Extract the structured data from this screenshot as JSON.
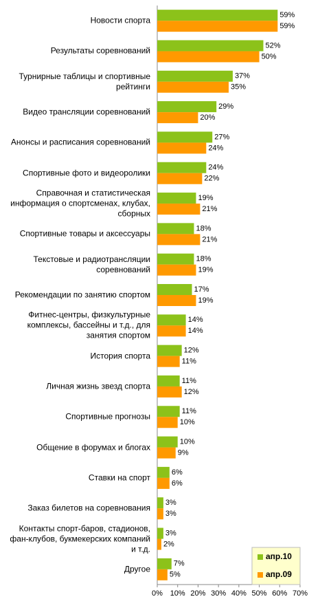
{
  "chart_data": {
    "type": "hbar",
    "categories": [
      "Новости спорта",
      "Результаты соревнований",
      "Турнирные таблицы и спортивные рейтинги",
      "Видео трансляции соревнований",
      "Анонсы и расписания соревнований",
      "Спортивные фото и видеоролики",
      "Справочная и статистическая информация о спортсменах, клубах, сборных",
      "Спортивные товары и аксессуары",
      "Текстовые и радиотрансляции соревнований",
      "Рекомендации по занятию спортом",
      "Фитнес-центры, физкультурные комплексы, бассейны и т.д., для занятия спортом",
      "История спорта",
      "Личная жизнь звезд спорта",
      "Спортивные прогнозы",
      "Общение в форумах и блогах",
      "Ставки на спорт",
      "Заказ билетов на соревнования",
      "Контакты спорт-баров, стадионов, фан-клубов, букмекерских компаний и т.д.",
      "Другое"
    ],
    "series": [
      {
        "name": "апр.10",
        "color": "#8cc21a",
        "values": [
          59,
          52,
          37,
          29,
          27,
          24,
          19,
          18,
          18,
          17,
          14,
          12,
          11,
          11,
          10,
          6,
          3,
          3,
          7
        ],
        "value_labels": [
          "59%",
          "52%",
          "37%",
          "29%",
          "27%",
          "24%",
          "19%",
          "18%",
          "18%",
          "17%",
          "14%",
          "12%",
          "11%",
          "11%",
          "10%",
          "6%",
          "3%",
          "3%",
          "7%"
        ]
      },
      {
        "name": "апр.09",
        "color": "#ff9900",
        "values": [
          59,
          50,
          35,
          20,
          24,
          22,
          21,
          21,
          19,
          19,
          14,
          11,
          12,
          10,
          9,
          6,
          3,
          2,
          5
        ],
        "value_labels": [
          "59%",
          "50%",
          "35%",
          "20%",
          "24%",
          "22%",
          "21%",
          "21%",
          "19%",
          "19%",
          "14%",
          "11%",
          "12%",
          "10%",
          "9%",
          "6%",
          "3%",
          "2%",
          "5%"
        ]
      }
    ],
    "xlim": [
      0,
      70
    ],
    "xticks": [
      {
        "value": 0,
        "label": "0%"
      },
      {
        "value": 10,
        "label": "10%"
      },
      {
        "value": 20,
        "label": "20%"
      },
      {
        "value": 30,
        "label": "30%"
      },
      {
        "value": 40,
        "label": "40%"
      },
      {
        "value": 50,
        "label": "50%"
      },
      {
        "value": 60,
        "label": "60%"
      },
      {
        "value": 70,
        "label": "70%"
      }
    ],
    "legend": "bottom-right"
  }
}
